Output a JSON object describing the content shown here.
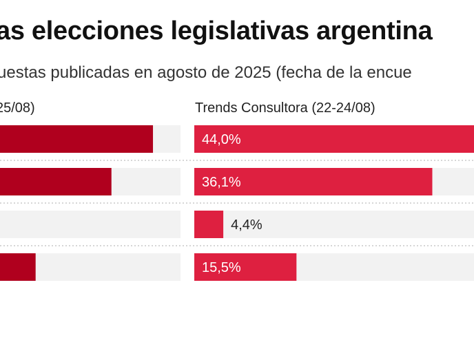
{
  "title": "as elecciones legislativas argentina",
  "subtitle": "uestas publicadas en agosto de 2025 (fecha de la encue",
  "chart_data": {
    "type": "bar",
    "orientation": "horizontal",
    "xlim": [
      0,
      50
    ],
    "panels": [
      {
        "title": "25/08)",
        "color": "#b0001e",
        "values": [
          44.1,
          37.8,
          null,
          26.3
        ],
        "labels": [
          "",
          "",
          "",
          ""
        ]
      },
      {
        "title": "Trends Consultora (22-24/08)",
        "color": "#de2040",
        "values": [
          44.0,
          36.1,
          4.4,
          15.5
        ],
        "labels": [
          "44,0%",
          "36,1%",
          "4,4%",
          "15,5%"
        ]
      }
    ],
    "track_color": "#f2f2f2",
    "grid": false
  }
}
